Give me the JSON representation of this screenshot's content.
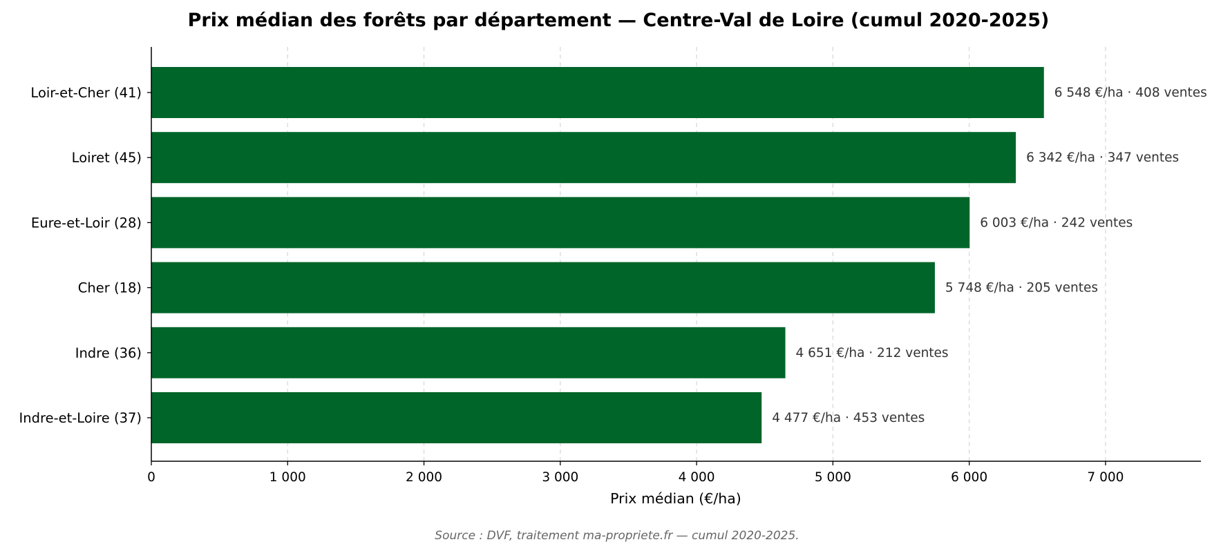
{
  "chart_data": {
    "type": "bar",
    "orientation": "horizontal",
    "title": "Prix médian des forêts par département — Centre-Val de Loire (cumul 2020-2025)",
    "xlabel": "Prix médian (€/ha)",
    "ylabel": "",
    "xlim": [
      0,
      7700
    ],
    "xticks": [
      0,
      1000,
      2000,
      3000,
      4000,
      5000,
      6000,
      7000
    ],
    "xtick_labels": [
      "0",
      "1 000",
      "2 000",
      "3 000",
      "4 000",
      "5 000",
      "6 000",
      "7 000"
    ],
    "grid": "x dashed",
    "bar_color": "#006529",
    "categories": [
      "Loir-et-Cher (41)",
      "Loiret (45)",
      "Eure-et-Loir (28)",
      "Cher (18)",
      "Indre (36)",
      "Indre-et-Loire (37)"
    ],
    "values": [
      6548,
      6342,
      6003,
      5748,
      4651,
      4477
    ],
    "sales": [
      408,
      347,
      242,
      205,
      212,
      453
    ],
    "data_labels": [
      "6 548 €/ha · 408 ventes",
      "6 342 €/ha · 347 ventes",
      "6 003 €/ha · 242 ventes",
      "5 748 €/ha · 205 ventes",
      "4 651 €/ha · 212 ventes",
      "4 477 €/ha · 453 ventes"
    ],
    "source": "Source : DVF, traitement ma-propriete.fr — cumul 2020-2025."
  }
}
